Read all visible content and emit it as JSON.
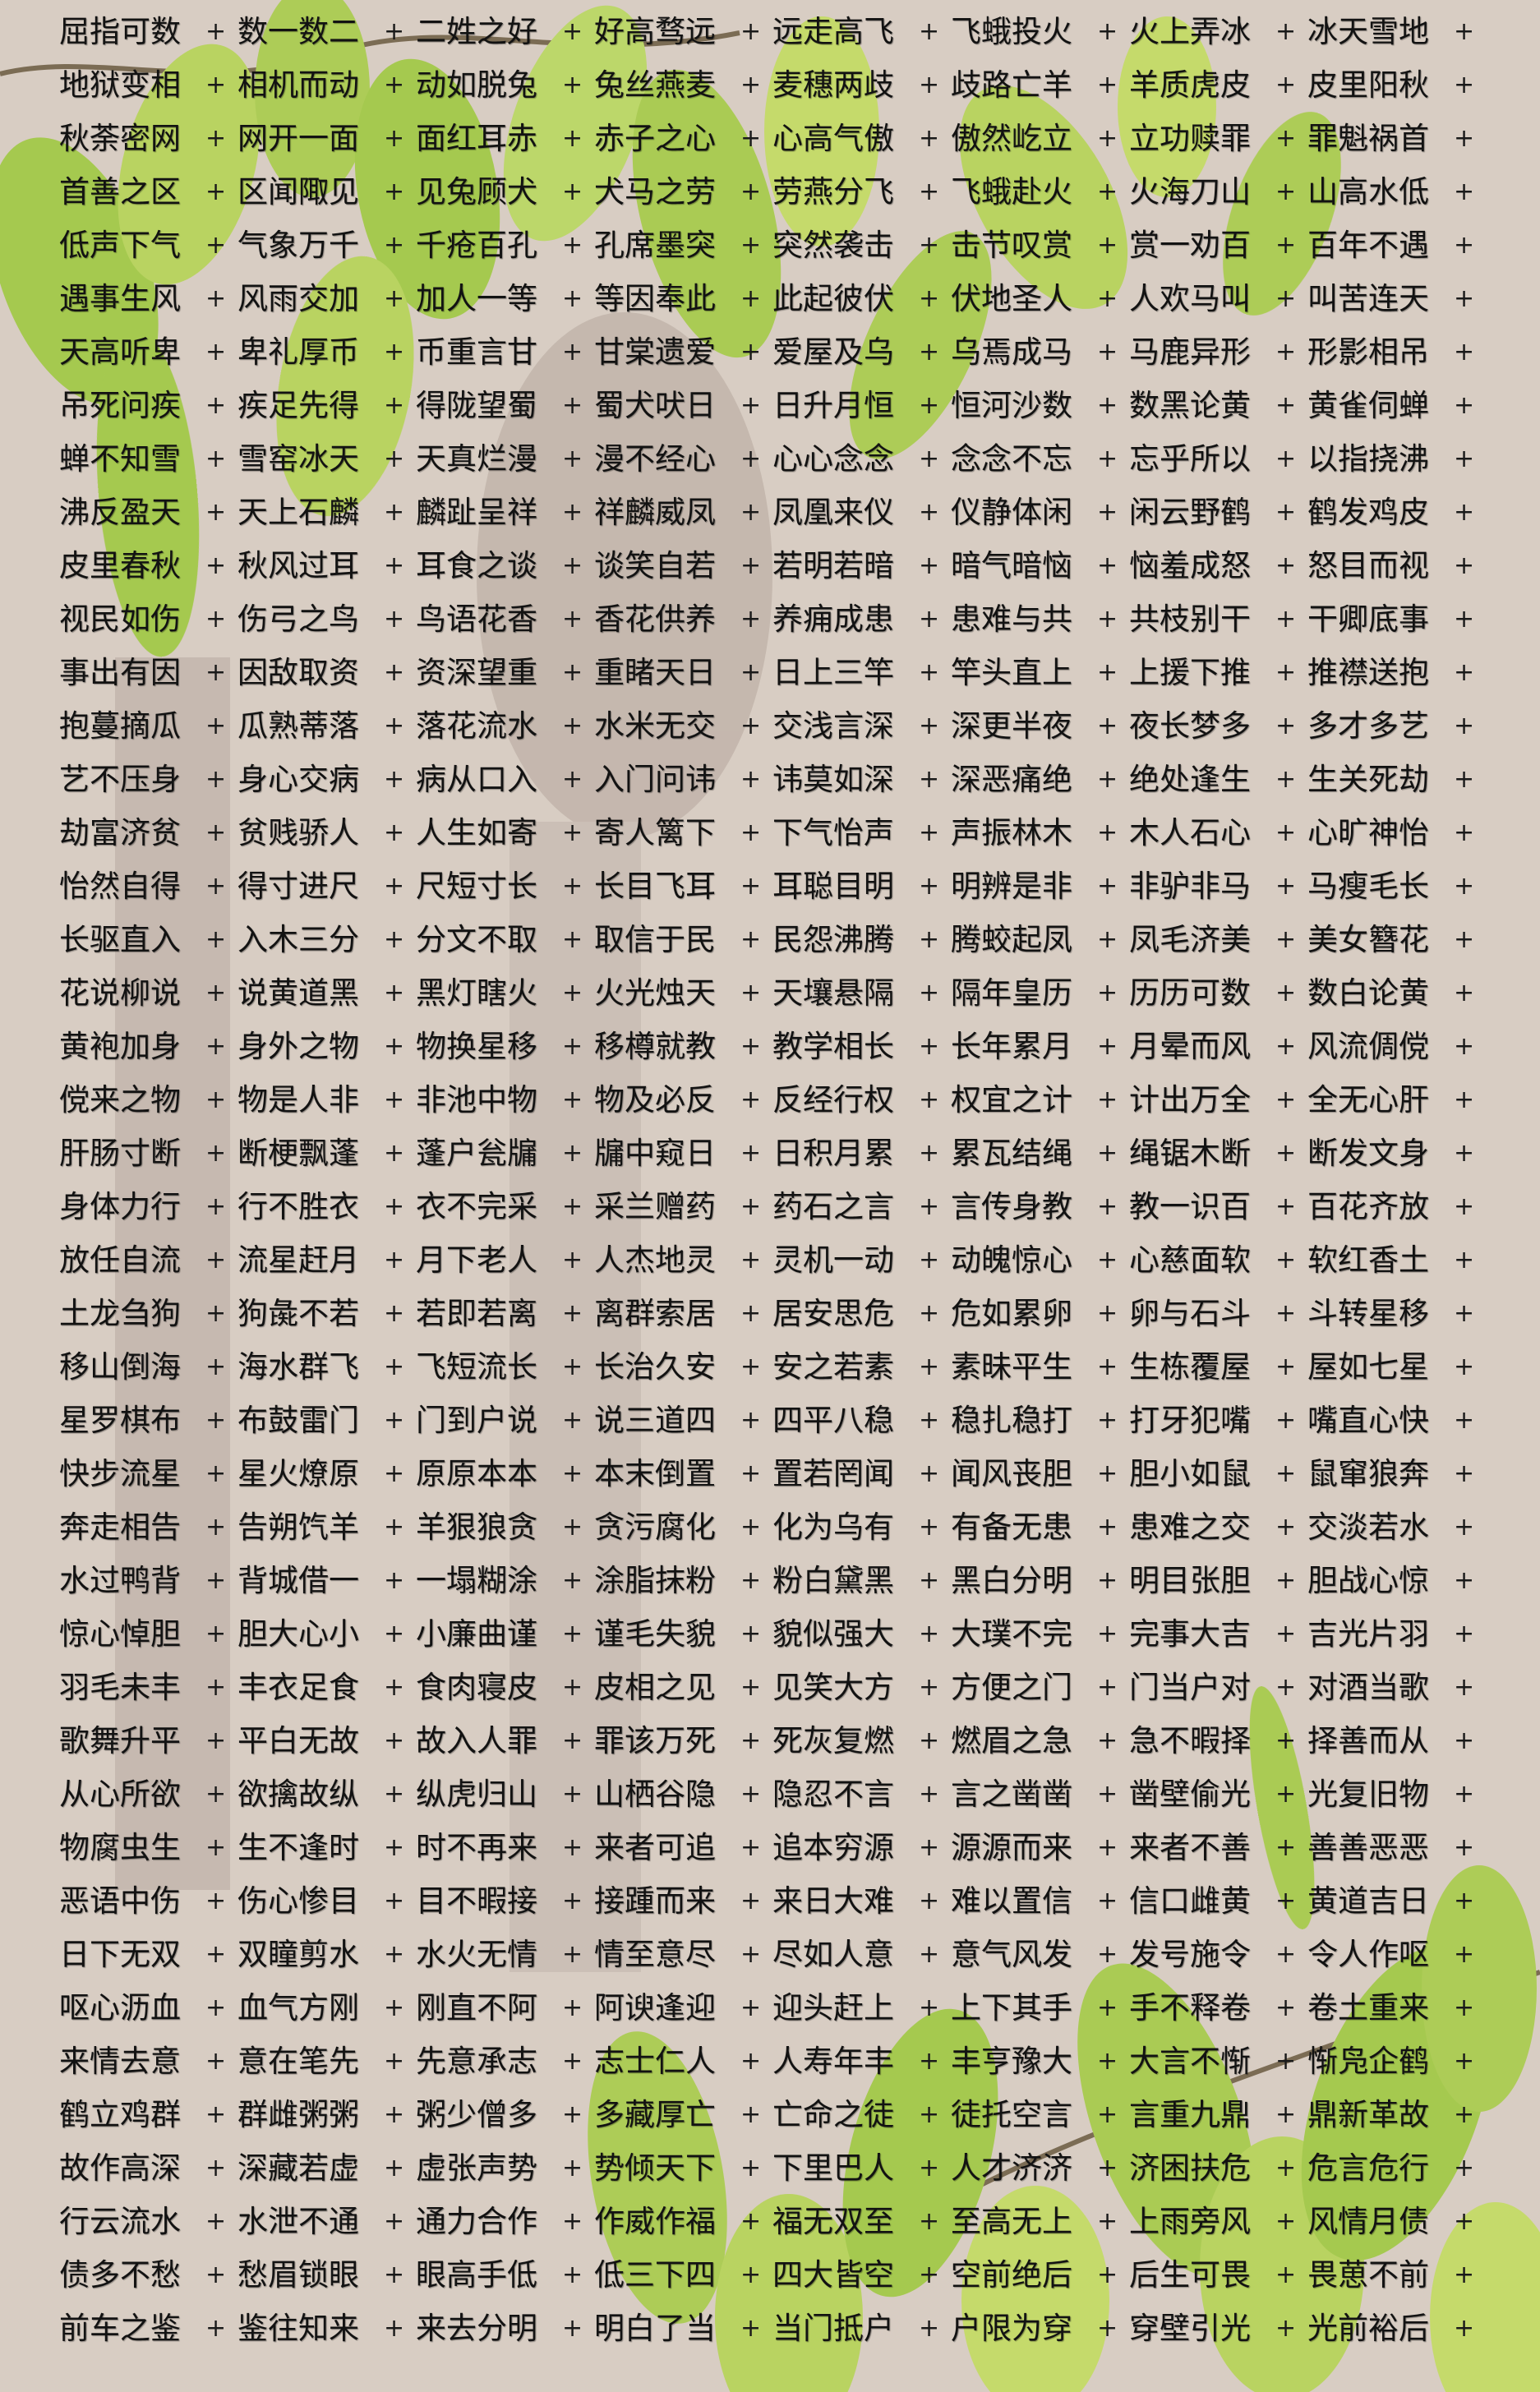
{
  "separator": "+",
  "colors": {
    "background": "#d8cdc3",
    "leaf": "#9cc83a",
    "leaf_light": "#c2dc5c",
    "text": "#121212"
  },
  "rows": [
    [
      "屈指可数",
      "数一数二",
      "二姓之好",
      "好高骛远",
      "远走高飞",
      "飞蛾投火",
      "火上弄冰",
      "冰天雪地"
    ],
    [
      "地狱变相",
      "相机而动",
      "动如脱兔",
      "兔丝燕麦",
      "麦穗两歧",
      "歧路亡羊",
      "羊质虎皮",
      "皮里阳秋"
    ],
    [
      "秋荼密网",
      "网开一面",
      "面红耳赤",
      "赤子之心",
      "心高气傲",
      "傲然屹立",
      "立功赎罪",
      "罪魁祸首"
    ],
    [
      "首善之区",
      "区闻陬见",
      "见兔顾犬",
      "犬马之劳",
      "劳燕分飞",
      "飞蛾赴火",
      "火海刀山",
      "山高水低"
    ],
    [
      "低声下气",
      "气象万千",
      "千疮百孔",
      "孔席墨突",
      "突然袭击",
      "击节叹赏",
      "赏一劝百",
      "百年不遇"
    ],
    [
      "遇事生风",
      "风雨交加",
      "加人一等",
      "等因奉此",
      "此起彼伏",
      "伏地圣人",
      "人欢马叫",
      "叫苦连天"
    ],
    [
      "天高听卑",
      "卑礼厚币",
      "币重言甘",
      "甘棠遗爱",
      "爱屋及乌",
      "乌焉成马",
      "马鹿异形",
      "形影相吊"
    ],
    [
      "吊死问疾",
      "疾足先得",
      "得陇望蜀",
      "蜀犬吠日",
      "日升月恒",
      "恒河沙数",
      "数黑论黄",
      "黄雀伺蝉"
    ],
    [
      "蝉不知雪",
      "雪窑冰天",
      "天真烂漫",
      "漫不经心",
      "心心念念",
      "念念不忘",
      "忘乎所以",
      "以指挠沸"
    ],
    [
      "沸反盈天",
      "天上石麟",
      "麟趾呈祥",
      "祥麟威凤",
      "凤凰来仪",
      "仪静体闲",
      "闲云野鹤",
      "鹤发鸡皮"
    ],
    [
      "皮里春秋",
      "秋风过耳",
      "耳食之谈",
      "谈笑自若",
      "若明若暗",
      "暗气暗恼",
      "恼羞成怒",
      "怒目而视"
    ],
    [
      "视民如伤",
      "伤弓之鸟",
      "鸟语花香",
      "香花供养",
      "养痈成患",
      "患难与共",
      "共枝别干",
      "干卿底事"
    ],
    [
      "事出有因",
      "因敌取资",
      "资深望重",
      "重睹天日",
      "日上三竿",
      "竿头直上",
      "上援下推",
      "推襟送抱"
    ],
    [
      "抱蔓摘瓜",
      "瓜熟蒂落",
      "落花流水",
      "水米无交",
      "交浅言深",
      "深更半夜",
      "夜长梦多",
      "多才多艺"
    ],
    [
      "艺不压身",
      "身心交病",
      "病从口入",
      "入门问讳",
      "讳莫如深",
      "深恶痛绝",
      "绝处逢生",
      "生关死劫"
    ],
    [
      "劫富济贫",
      "贫贱骄人",
      "人生如寄",
      "寄人篱下",
      "下气怡声",
      "声振林木",
      "木人石心",
      "心旷神怡"
    ],
    [
      "怡然自得",
      "得寸进尺",
      "尺短寸长",
      "长目飞耳",
      "耳聪目明",
      "明辨是非",
      "非驴非马",
      "马瘦毛长"
    ],
    [
      "长驱直入",
      "入木三分",
      "分文不取",
      "取信于民",
      "民怨沸腾",
      "腾蛟起凤",
      "凤毛济美",
      "美女簪花"
    ],
    [
      "花说柳说",
      "说黄道黑",
      "黑灯瞎火",
      "火光烛天",
      "天壤悬隔",
      "隔年皇历",
      "历历可数",
      "数白论黄"
    ],
    [
      "黄袍加身",
      "身外之物",
      "物换星移",
      "移樽就教",
      "教学相长",
      "长年累月",
      "月晕而风",
      "风流倜傥"
    ],
    [
      "傥来之物",
      "物是人非",
      "非池中物",
      "物及必反",
      "反经行权",
      "权宜之计",
      "计出万全",
      "全无心肝"
    ],
    [
      "肝肠寸断",
      "断梗飘蓬",
      "蓬户瓮牖",
      "牖中窥日",
      "日积月累",
      "累瓦结绳",
      "绳锯木断",
      "断发文身"
    ],
    [
      "身体力行",
      "行不胜衣",
      "衣不完采",
      "采兰赠药",
      "药石之言",
      "言传身教",
      "教一识百",
      "百花齐放"
    ],
    [
      "放任自流",
      "流星赶月",
      "月下老人",
      "人杰地灵",
      "灵机一动",
      "动魄惊心",
      "心慈面软",
      "软红香土"
    ],
    [
      "土龙刍狗",
      "狗彘不若",
      "若即若离",
      "离群索居",
      "居安思危",
      "危如累卵",
      "卵与石斗",
      "斗转星移"
    ],
    [
      "移山倒海",
      "海水群飞",
      "飞短流长",
      "长治久安",
      "安之若素",
      "素昧平生",
      "生栋覆屋",
      "屋如七星"
    ],
    [
      "星罗棋布",
      "布鼓雷门",
      "门到户说",
      "说三道四",
      "四平八稳",
      "稳扎稳打",
      "打牙犯嘴",
      "嘴直心快"
    ],
    [
      "快步流星",
      "星火燎原",
      "原原本本",
      "本末倒置",
      "置若罔闻",
      "闻风丧胆",
      "胆小如鼠",
      "鼠窜狼奔"
    ],
    [
      "奔走相告",
      "告朔饩羊",
      "羊狠狼贪",
      "贪污腐化",
      "化为乌有",
      "有备无患",
      "患难之交",
      "交淡若水"
    ],
    [
      "水过鸭背",
      "背城借一",
      "一塌糊涂",
      "涂脂抹粉",
      "粉白黛黑",
      "黑白分明",
      "明目张胆",
      "胆战心惊"
    ],
    [
      "惊心悼胆",
      "胆大心小",
      "小廉曲谨",
      "谨毛失貌",
      "貌似强大",
      "大璞不完",
      "完事大吉",
      "吉光片羽"
    ],
    [
      "羽毛未丰",
      "丰衣足食",
      "食肉寝皮",
      "皮相之见",
      "见笑大方",
      "方便之门",
      "门当户对",
      "对酒当歌"
    ],
    [
      "歌舞升平",
      "平白无故",
      "故入人罪",
      "罪该万死",
      "死灰复燃",
      "燃眉之急",
      "急不暇择",
      "择善而从"
    ],
    [
      "从心所欲",
      "欲擒故纵",
      "纵虎归山",
      "山栖谷隐",
      "隐忍不言",
      "言之凿凿",
      "凿壁偷光",
      "光复旧物"
    ],
    [
      "物腐虫生",
      "生不逢时",
      "时不再来",
      "来者可追",
      "追本穷源",
      "源源而来",
      "来者不善",
      "善善恶恶"
    ],
    [
      "恶语中伤",
      "伤心惨目",
      "目不暇接",
      "接踵而来",
      "来日大难",
      "难以置信",
      "信口雌黄",
      "黄道吉日"
    ],
    [
      "日下无双",
      "双瞳剪水",
      "水火无情",
      "情至意尽",
      "尽如人意",
      "意气风发",
      "发号施令",
      "令人作呕"
    ],
    [
      "呕心沥血",
      "血气方刚",
      "刚直不阿",
      "阿谀逢迎",
      "迎头赶上",
      "上下其手",
      "手不释卷",
      "卷土重来"
    ],
    [
      "来情去意",
      "意在笔先",
      "先意承志",
      "志士仁人",
      "人寿年丰",
      "丰亨豫大",
      "大言不惭",
      "惭凫企鹤"
    ],
    [
      "鹤立鸡群",
      "群雌粥粥",
      "粥少僧多",
      "多藏厚亡",
      "亡命之徒",
      "徒托空言",
      "言重九鼎",
      "鼎新革故"
    ],
    [
      "故作高深",
      "深藏若虚",
      "虚张声势",
      "势倾天下",
      "下里巴人",
      "人才济济",
      "济困扶危",
      "危言危行"
    ],
    [
      "行云流水",
      "水泄不通",
      "通力合作",
      "作威作福",
      "福无双至",
      "至高无上",
      "上雨旁风",
      "风情月债"
    ],
    [
      "债多不愁",
      "愁眉锁眼",
      "眼高手低",
      "低三下四",
      "四大皆空",
      "空前绝后",
      "后生可畏",
      "畏葸不前"
    ],
    [
      "前车之鉴",
      "鉴往知来",
      "来去分明",
      "明白了当",
      "当门抵户",
      "户限为穿",
      "穿壁引光",
      "光前裕后"
    ]
  ]
}
